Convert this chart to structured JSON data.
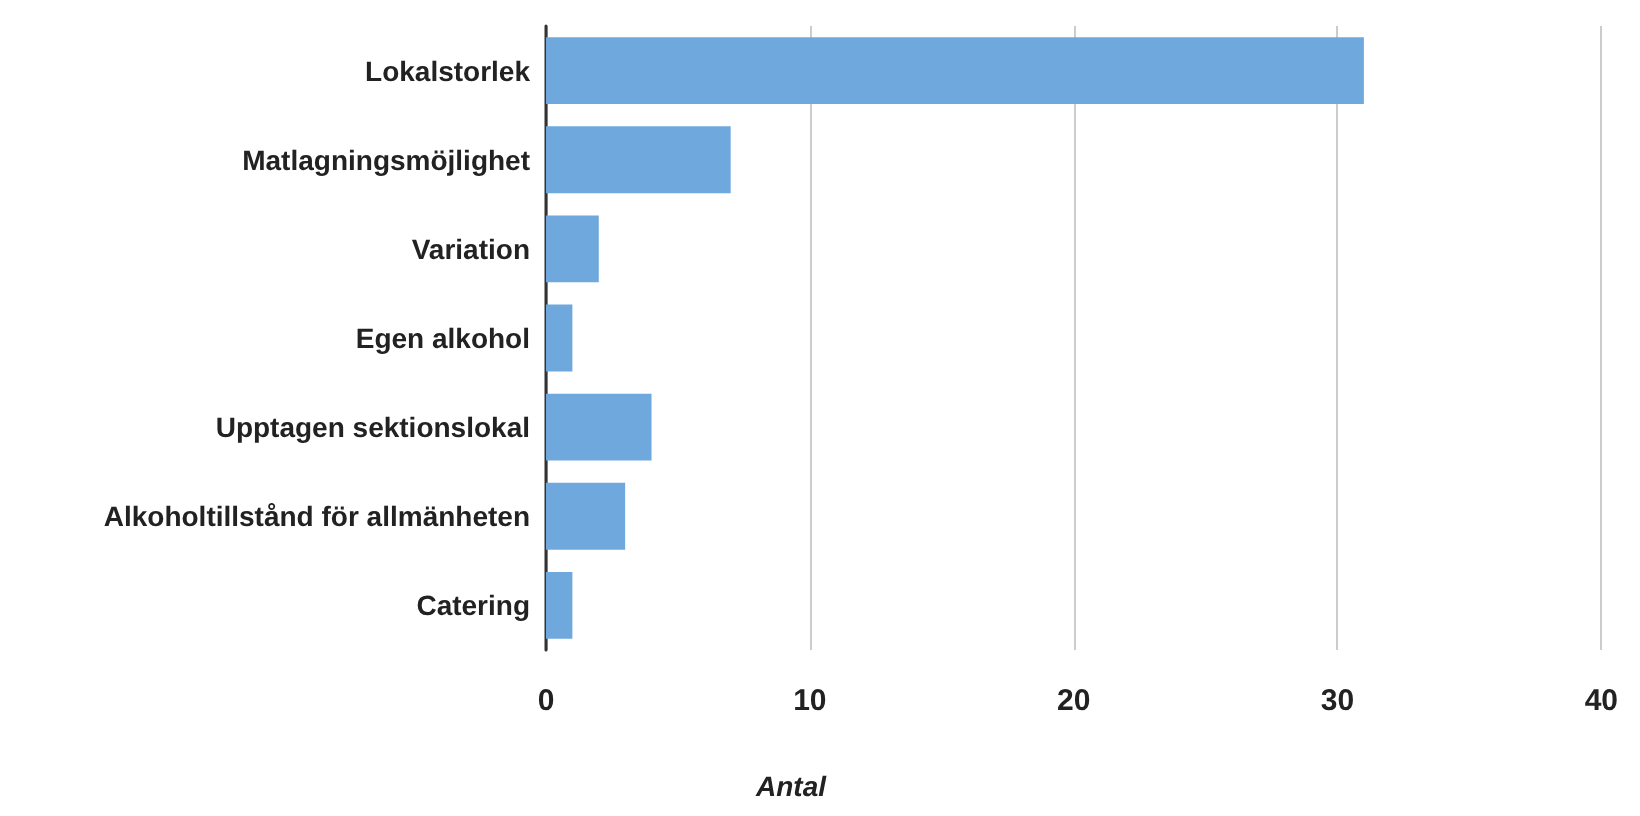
{
  "chart_data": {
    "type": "bar",
    "orientation": "horizontal",
    "xlabel": "Antal",
    "categories": [
      "Lokalstorlek",
      "Matlagningsmöjlighet",
      "Variation",
      "Egen alkohol",
      "Upptagen sektionslokal",
      "Alkoholtillstånd för allmänheten",
      "Catering"
    ],
    "values": [
      31,
      7,
      2,
      1,
      4,
      3,
      1
    ],
    "color": "#6fa8dc",
    "xlim": [
      0,
      40
    ],
    "xticks": [
      0,
      10,
      20,
      30,
      40
    ],
    "grid": "x"
  }
}
